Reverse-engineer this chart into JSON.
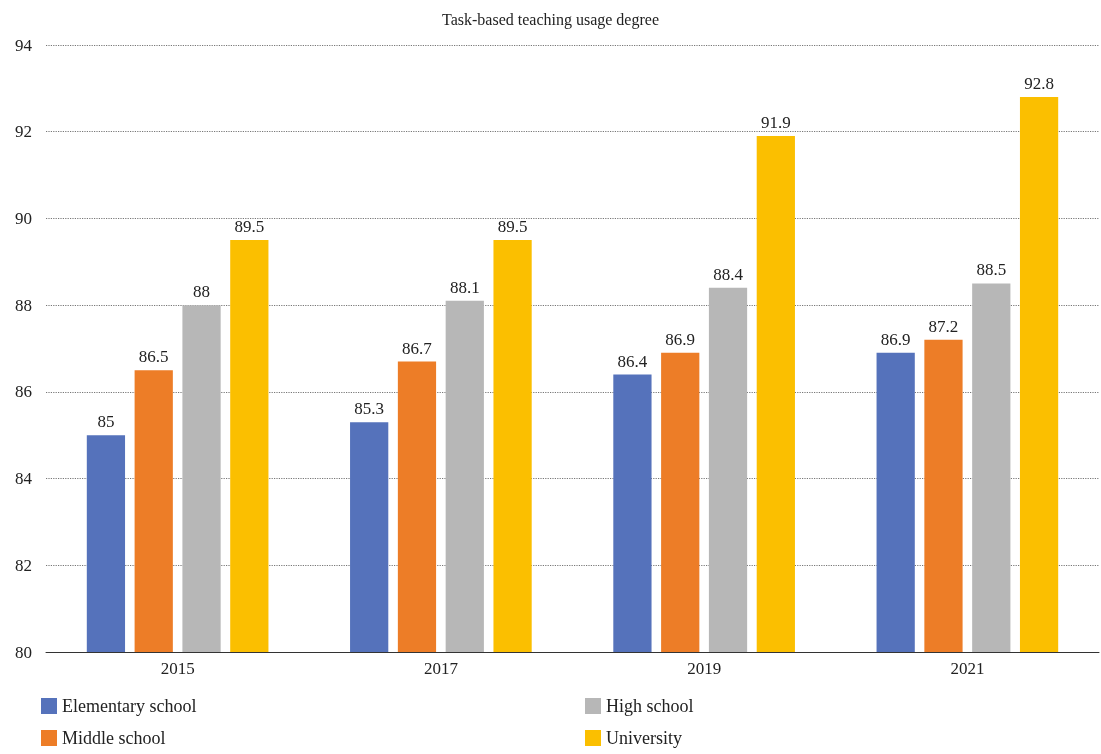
{
  "chart_data": {
    "type": "bar",
    "title": "Task-based teaching usage degree",
    "categories": [
      "2015",
      "2017",
      "2019",
      "2021"
    ],
    "series": [
      {
        "name": "Elementary school",
        "color": "#5572bb",
        "values": [
          85,
          85.3,
          86.4,
          86.9
        ]
      },
      {
        "name": "Middle school",
        "color": "#ed7d27",
        "values": [
          86.5,
          86.7,
          86.9,
          87.2
        ]
      },
      {
        "name": "High school",
        "color": "#b7b7b7",
        "values": [
          88,
          88.1,
          88.4,
          88.5
        ]
      },
      {
        "name": "University",
        "color": "#fbbf00",
        "values": [
          89.5,
          89.5,
          91.9,
          92.8
        ]
      }
    ],
    "ylim": [
      80,
      94
    ],
    "yticks": [
      80,
      82,
      84,
      86,
      88,
      90,
      92,
      94
    ],
    "grid": "y",
    "legend": "bottom",
    "data_labels": true
  }
}
